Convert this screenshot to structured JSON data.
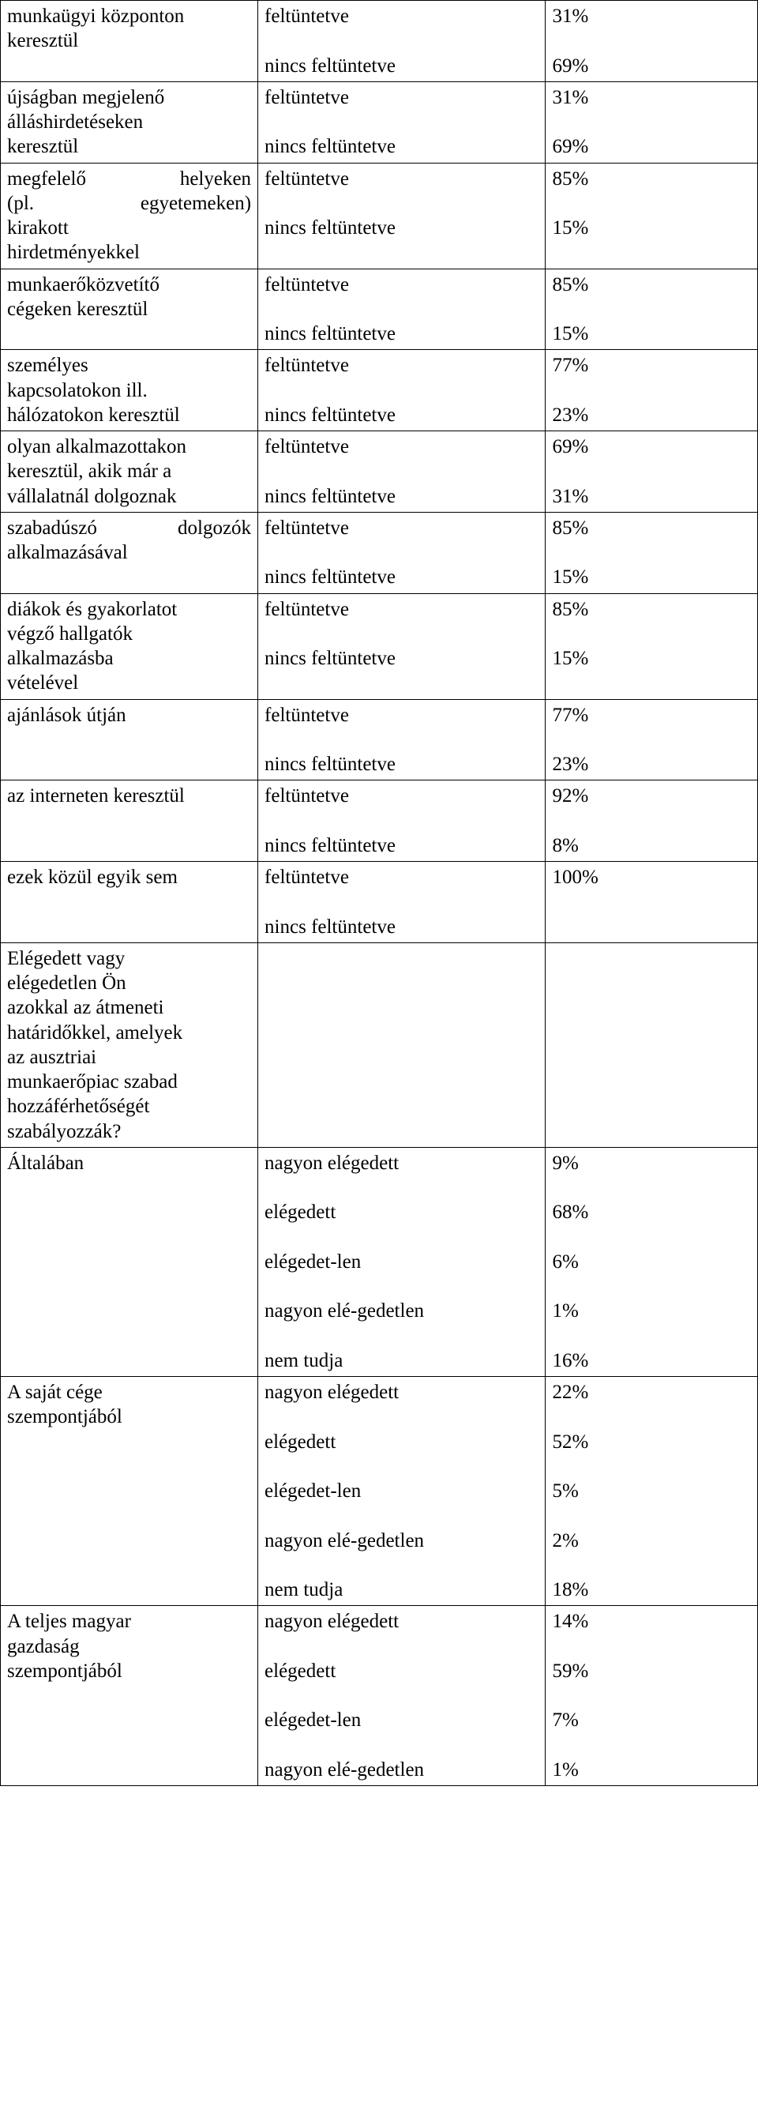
{
  "labels": {
    "feltuntetve": "feltüntetve",
    "nincs": "nincs feltüntetve",
    "nagyon_elegedett": "nagyon elégedett",
    "elegedett": "elégedett",
    "elegedetlen": "elégedet-len",
    "nagyon_elegedetlen": "nagyon elé-gedetlen",
    "nem_tudja": "nem tudja"
  },
  "rows": [
    {
      "left": [
        "munkaügyi központon",
        "keresztül"
      ],
      "v1": "31%",
      "v2": "69%"
    },
    {
      "left": [
        "újságban megjelenő",
        "álláshirdetéseken",
        "keresztül"
      ],
      "v1": "31%",
      "v2": "69%"
    },
    {
      "left_justify": [
        [
          "megfelelő",
          "helyeken"
        ],
        [
          "(pl.",
          "egyetemeken)"
        ]
      ],
      "left_tail": [
        "kirakott",
        "hirdetményekkel"
      ],
      "v1": "85%",
      "v2": "15%"
    },
    {
      "left": [
        "munkaerőközvetítő",
        "cégeken keresztül"
      ],
      "v1": "85%",
      "v2": "15%"
    },
    {
      "left": [
        "személyes",
        "kapcsolatokon ill.",
        "hálózatokon keresztül"
      ],
      "v1": "77%",
      "v2": "23%"
    },
    {
      "left": [
        "olyan alkalmazottakon",
        "keresztül, akik már a",
        "vállalatnál dolgoznak"
      ],
      "v1": "69%",
      "v2": "31%"
    },
    {
      "left_justify": [
        [
          "szabadúszó",
          "dolgozók"
        ]
      ],
      "left_tail": [
        "alkalmazásával"
      ],
      "v1": "85%",
      "v2": "15%"
    },
    {
      "left": [
        "diákok és gyakorlatot",
        "végző hallgatók",
        "alkalmazásba",
        "vételével"
      ],
      "v1": "85%",
      "v2": "15%"
    },
    {
      "left": [
        "ajánlások útján"
      ],
      "v1": "77%",
      "v2": "23%"
    },
    {
      "left": [
        "az interneten keresztül"
      ],
      "v1": "92%",
      "v2": "8%"
    },
    {
      "left": [
        "ezek közül egyik sem"
      ],
      "v1": "100%",
      "v2": ""
    }
  ],
  "question_left": [
    "Elégedett vagy",
    "elégedetlen Ön",
    "azokkal az átmeneti",
    "határidőkkel, amelyek",
    "az ausztriai",
    "munkaerőpiac szabad",
    "hozzáférhetőségét",
    "szabályozzák?"
  ],
  "satisfaction": [
    {
      "left": [
        "Általában"
      ],
      "vals": [
        "9%",
        "68%",
        "6%",
        "1%",
        "16%"
      ]
    },
    {
      "left": [
        "A saját cége",
        "szempontjából"
      ],
      "vals": [
        "22%",
        "52%",
        "5%",
        "2%",
        "18%"
      ]
    },
    {
      "left": [
        "A teljes magyar",
        "gazdaság",
        "szempontjából"
      ],
      "vals": [
        "14%",
        "59%",
        "7%",
        "1%"
      ],
      "no_last": true
    }
  ]
}
